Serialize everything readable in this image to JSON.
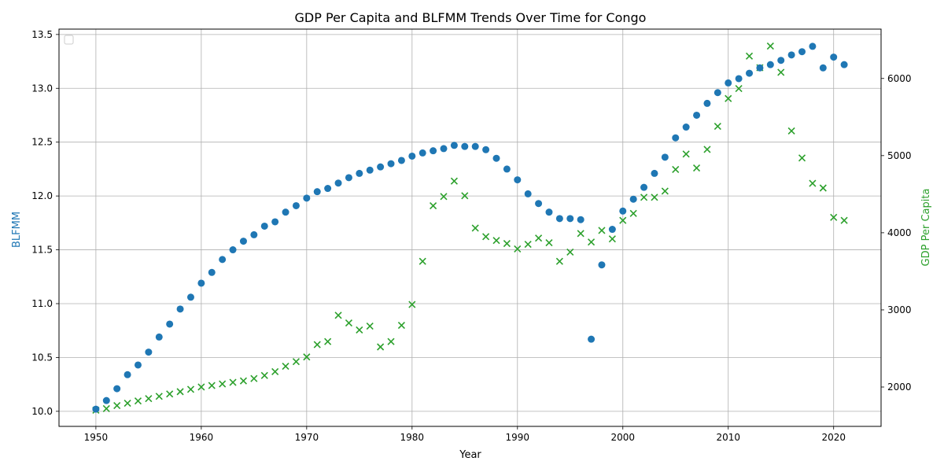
{
  "chart_data": {
    "type": "scatter",
    "title": "GDP Per Capita and BLFMM Trends Over Time for Congo",
    "xlabel": "Year",
    "ylabel_left": "BLFMM",
    "ylabel_right": "GDP Per Capita",
    "xlim": [
      1946.5,
      2024.5
    ],
    "ylim_left": [
      9.86,
      13.55
    ],
    "ylim_right": [
      1490,
      6640
    ],
    "x_ticks": [
      1950,
      1960,
      1970,
      1980,
      1990,
      2000,
      2010,
      2020
    ],
    "y_ticks_left": [
      10.0,
      10.5,
      11.0,
      11.5,
      12.0,
      12.5,
      13.0,
      13.5
    ],
    "y_ticks_right": [
      2000,
      3000,
      4000,
      5000,
      6000
    ],
    "grid": true,
    "legend": "upper-left (empty)",
    "colors": {
      "left": "#1f77b4",
      "right": "#2ca02c"
    },
    "x": [
      1950,
      1951,
      1952,
      1953,
      1954,
      1955,
      1956,
      1957,
      1958,
      1959,
      1960,
      1961,
      1962,
      1963,
      1964,
      1965,
      1966,
      1967,
      1968,
      1969,
      1970,
      1971,
      1972,
      1973,
      1974,
      1975,
      1976,
      1977,
      1978,
      1979,
      1980,
      1981,
      1982,
      1983,
      1984,
      1985,
      1986,
      1987,
      1988,
      1989,
      1990,
      1991,
      1992,
      1993,
      1994,
      1995,
      1996,
      1997,
      1998,
      1999,
      2000,
      2001,
      2002,
      2003,
      2004,
      2005,
      2006,
      2007,
      2008,
      2009,
      2010,
      2011,
      2012,
      2013,
      2014,
      2015,
      2016,
      2017,
      2018,
      2019,
      2020,
      2021
    ],
    "series": [
      {
        "name": "BLFMM",
        "axis": "left",
        "marker": "circle",
        "values": [
          10.02,
          10.1,
          10.21,
          10.34,
          10.43,
          10.55,
          10.69,
          10.81,
          10.95,
          11.06,
          11.19,
          11.29,
          11.41,
          11.5,
          11.58,
          11.64,
          11.72,
          11.76,
          11.85,
          11.91,
          11.98,
          12.04,
          12.07,
          12.12,
          12.17,
          12.21,
          12.24,
          12.27,
          12.3,
          12.33,
          12.37,
          12.4,
          12.42,
          12.44,
          12.47,
          12.46,
          12.46,
          12.43,
          12.35,
          12.25,
          12.15,
          12.02,
          11.93,
          11.85,
          11.79,
          11.79,
          11.78,
          10.67,
          11.36,
          11.69,
          11.86,
          11.97,
          12.08,
          12.21,
          12.36,
          12.54,
          12.64,
          12.75,
          12.86,
          12.96,
          13.05,
          13.09,
          13.14,
          13.19,
          13.22,
          13.26,
          13.31,
          13.34,
          13.39,
          13.19,
          13.29,
          13.22
        ]
      },
      {
        "name": "GDP Per Capita",
        "axis": "right",
        "marker": "x",
        "values": [
          1700,
          1720,
          1760,
          1790,
          1820,
          1850,
          1880,
          1910,
          1940,
          1970,
          2000,
          2020,
          2040,
          2060,
          2080,
          2110,
          2150,
          2200,
          2270,
          2330,
          2390,
          2550,
          2590,
          2930,
          2830,
          2740,
          2790,
          2520,
          2590,
          2800,
          3070,
          3630,
          4350,
          4470,
          4670,
          4480,
          4060,
          3950,
          3900,
          3860,
          3790,
          3850,
          3930,
          3870,
          3630,
          3750,
          3990,
          3880,
          4030,
          3920,
          4160,
          4250,
          4460,
          4460,
          4540,
          4820,
          5020,
          4840,
          5080,
          5380,
          5740,
          5870,
          6290,
          6140,
          6420,
          6080,
          5320,
          4970,
          4640,
          4580,
          4200,
          4160
        ]
      }
    ]
  }
}
